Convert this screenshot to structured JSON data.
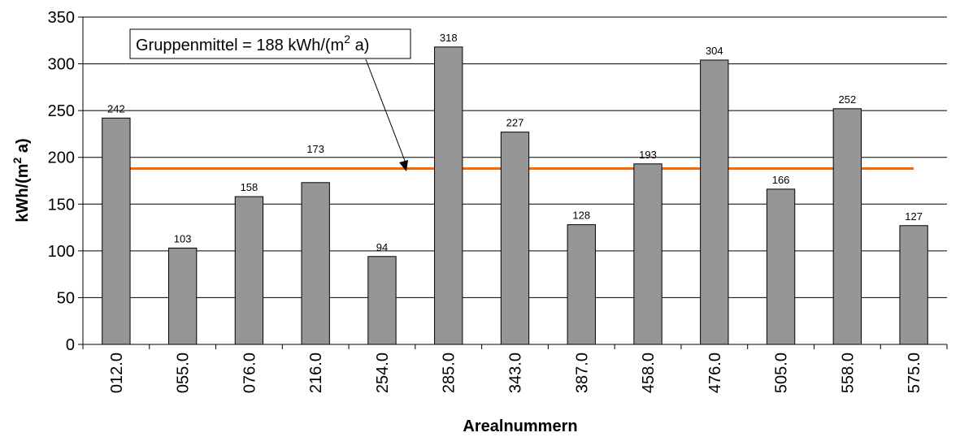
{
  "chart_data": {
    "type": "bar",
    "categories": [
      "012.0",
      "055.0",
      "076.0",
      "216.0",
      "254.0",
      "285.0",
      "343.0",
      "387.0",
      "458.0",
      "476.0",
      "505.0",
      "558.0",
      "575.0"
    ],
    "values": [
      242,
      103,
      158,
      173,
      94,
      318,
      227,
      128,
      193,
      304,
      166,
      252,
      127
    ],
    "data_labels": [
      "242",
      "103",
      "158",
      "173",
      "94",
      "318",
      "227",
      "128",
      "193",
      "304",
      "166",
      "252",
      "127"
    ],
    "xlabel": "Arealnummern",
    "ylabel": "kWh/(m² a)",
    "ylim": [
      0,
      350
    ],
    "yticks": [
      0,
      50,
      100,
      150,
      200,
      250,
      300,
      350
    ],
    "grid": "horizontal",
    "bar_color": "#969696",
    "reference_line": {
      "value": 188,
      "color": "#ff6600"
    },
    "annotation": {
      "text_prefix": "Gruppenmittel = 188 kWh/(m",
      "superscript": "2",
      "text_suffix": " a)"
    }
  }
}
